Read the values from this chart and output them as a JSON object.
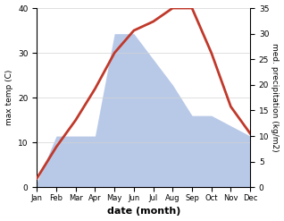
{
  "months": [
    "Jan",
    "Feb",
    "Mar",
    "Apr",
    "May",
    "Jun",
    "Jul",
    "Aug",
    "Sep",
    "Oct",
    "Nov",
    "Dec"
  ],
  "temperature": [
    2,
    9,
    15,
    22,
    30,
    35,
    37,
    40,
    40,
    30,
    18,
    12
  ],
  "precipitation": [
    1,
    10,
    10,
    10,
    30,
    30,
    25,
    20,
    14,
    14,
    12,
    10
  ],
  "temp_color": "#c0392b",
  "precip_fill_color": "#b8c9e8",
  "ylabel_left": "max temp (C)",
  "ylabel_right": "med. precipitation (kg/m2)",
  "xlabel": "date (month)",
  "ylim_left": [
    0,
    40
  ],
  "ylim_right": [
    0,
    35
  ],
  "yticks_left": [
    0,
    10,
    20,
    30,
    40
  ],
  "yticks_right": [
    0,
    5,
    10,
    15,
    20,
    25,
    30,
    35
  ],
  "temp_lw": 2.0,
  "bg_color": "#ffffff"
}
